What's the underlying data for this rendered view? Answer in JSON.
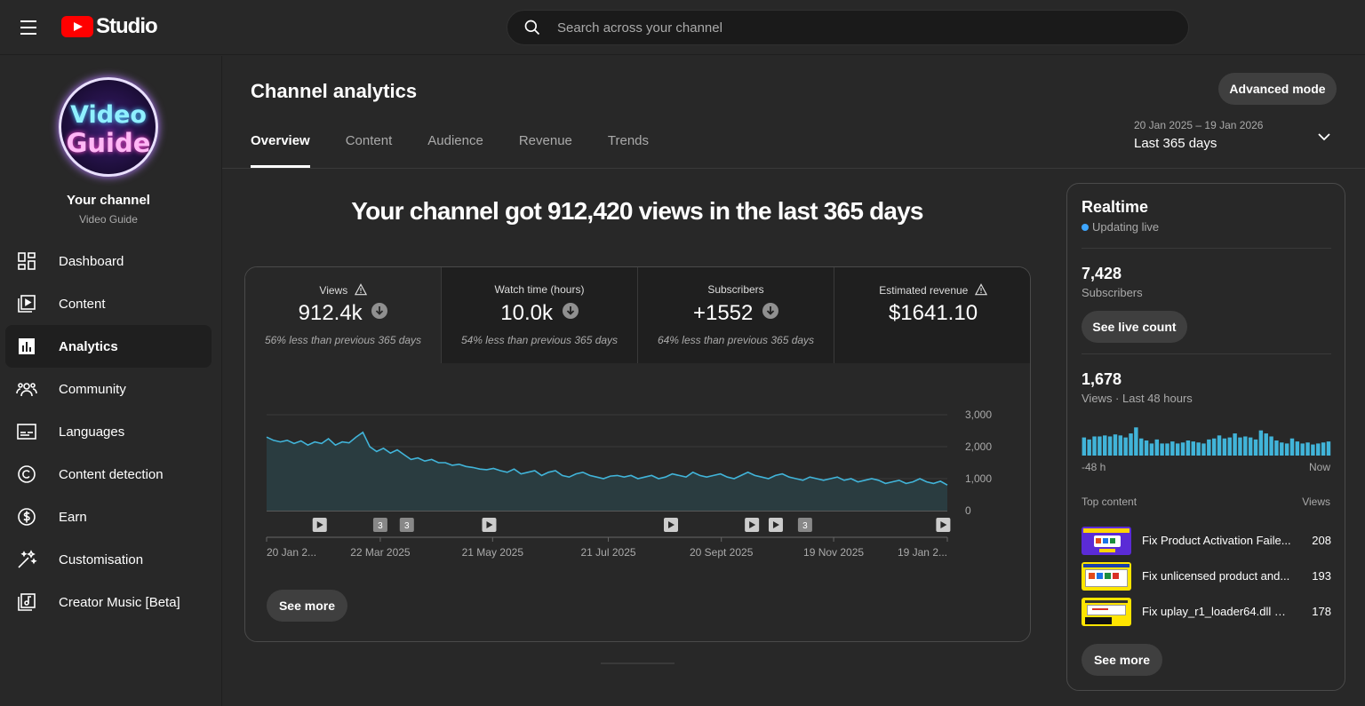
{
  "app": {
    "logo_text": "Studio",
    "brand_color": "#ff0000"
  },
  "search": {
    "placeholder": "Search across your channel"
  },
  "channel": {
    "title": "Your channel",
    "name": "Video Guide",
    "avatar_line1": "Video",
    "avatar_line2": "Guide"
  },
  "sidebar": {
    "items": [
      {
        "label": "Dashboard",
        "icon": "dashboard-icon"
      },
      {
        "label": "Content",
        "icon": "content-icon"
      },
      {
        "label": "Analytics",
        "icon": "analytics-icon",
        "active": true
      },
      {
        "label": "Community",
        "icon": "community-icon"
      },
      {
        "label": "Languages",
        "icon": "languages-icon"
      },
      {
        "label": "Content detection",
        "icon": "copyright-icon"
      },
      {
        "label": "Earn",
        "icon": "dollar-icon"
      },
      {
        "label": "Customisation",
        "icon": "magic-wand-icon"
      },
      {
        "label": "Creator Music [Beta]",
        "icon": "music-icon"
      }
    ]
  },
  "header": {
    "title": "Channel analytics",
    "advanced_mode": "Advanced mode",
    "tabs": [
      "Overview",
      "Content",
      "Audience",
      "Revenue",
      "Trends"
    ],
    "active_tab": "Overview",
    "date_range": {
      "dates": "20 Jan 2025 – 19 Jan 2026",
      "label": "Last 365 days"
    }
  },
  "overview": {
    "headline": "Your channel got 912,420 views in the last 365 days",
    "metrics": [
      {
        "label": "Views",
        "value": "912.4k",
        "note": "56% less than previous 365 days",
        "warning": true,
        "trend": "down"
      },
      {
        "label": "Watch time (hours)",
        "value": "10.0k",
        "note": "54% less than previous 365 days",
        "warning": false,
        "trend": "down"
      },
      {
        "label": "Subscribers",
        "value": "+1552",
        "note": "64% less than previous 365 days",
        "warning": false,
        "trend": "down"
      },
      {
        "label": "Estimated revenue",
        "value": "$1641.10",
        "note": "",
        "warning": true,
        "trend": "none"
      }
    ],
    "see_more": "See more"
  },
  "chart_data": {
    "type": "area",
    "series": [
      {
        "values": [
          2300,
          2200,
          2150,
          2200,
          2100,
          2180,
          2050,
          2150,
          2100,
          2250,
          2050,
          2150,
          2120,
          2300,
          2450,
          2000,
          1850,
          1950,
          1800,
          1900,
          1750,
          1600,
          1650,
          1550,
          1600,
          1500,
          1500,
          1420,
          1450,
          1380,
          1350,
          1300,
          1280,
          1320,
          1250,
          1200,
          1300,
          1150,
          1200,
          1250,
          1100,
          1200,
          1250,
          1100,
          1050,
          1150,
          1200,
          1100,
          1050,
          1000,
          1080,
          1100,
          1050,
          1100,
          1000,
          1050,
          1100,
          1000,
          1050,
          1150,
          1100,
          1050,
          1200,
          1100,
          1050,
          1100,
          1150,
          1050,
          1000,
          1100,
          1200,
          1100,
          1050,
          1000,
          1100,
          1150,
          1050,
          1000,
          950,
          1050,
          1000,
          950,
          1000,
          1050,
          950,
          1000,
          900,
          950,
          1000,
          950,
          850,
          900,
          950,
          850,
          900,
          1000,
          900,
          850,
          920,
          800
        ]
      }
    ],
    "x_tick_labels": [
      "20 Jan 2...",
      "22 Mar 2025",
      "21 May 2025",
      "21 Jul 2025",
      "20 Sept 2025",
      "19 Nov 2025",
      "19 Jan 2..."
    ],
    "y_tick_labels": [
      "3,000",
      "2,000",
      "1,000",
      "0"
    ],
    "ylim": [
      0,
      3000
    ],
    "grid": true,
    "color": "#41b4d9",
    "video_markers": [
      {
        "pos": 0.078,
        "label": ""
      },
      {
        "pos": 0.167,
        "label": "3"
      },
      {
        "pos": 0.206,
        "label": "3"
      },
      {
        "pos": 0.327,
        "label": ""
      },
      {
        "pos": 0.594,
        "label": ""
      },
      {
        "pos": 0.713,
        "label": ""
      },
      {
        "pos": 0.748,
        "label": ""
      },
      {
        "pos": 0.791,
        "label": "3"
      },
      {
        "pos": 0.994,
        "label": ""
      }
    ]
  },
  "realtime": {
    "title": "Realtime",
    "status": "Updating live",
    "subscribers_value": "7,428",
    "subscribers_label": "Subscribers",
    "live_count_button": "See live count",
    "views_value": "1,678",
    "views_label": "Views · Last 48 hours",
    "axis_start": "-48 h",
    "axis_end": "Now",
    "bars": [
      18,
      16,
      19,
      19,
      20,
      19,
      21,
      20,
      18,
      22,
      28,
      17,
      15,
      12,
      16,
      12,
      12,
      14,
      12,
      13,
      15,
      14,
      13,
      12,
      16,
      17,
      20,
      17,
      18,
      22,
      18,
      19,
      18,
      16,
      25,
      22,
      19,
      15,
      13,
      12,
      17,
      14,
      12,
      13,
      11,
      12,
      13,
      14
    ],
    "top_content_label": "Top content",
    "views_col_label": "Views",
    "top_content": [
      {
        "title": "Fix Product Activation Faile...",
        "views": "208"
      },
      {
        "title": "Fix unlicensed product and...",
        "views": "193"
      },
      {
        "title": "Fix uplay_r1_loader64.dll m...",
        "views": "178"
      }
    ],
    "see_more": "See more"
  }
}
